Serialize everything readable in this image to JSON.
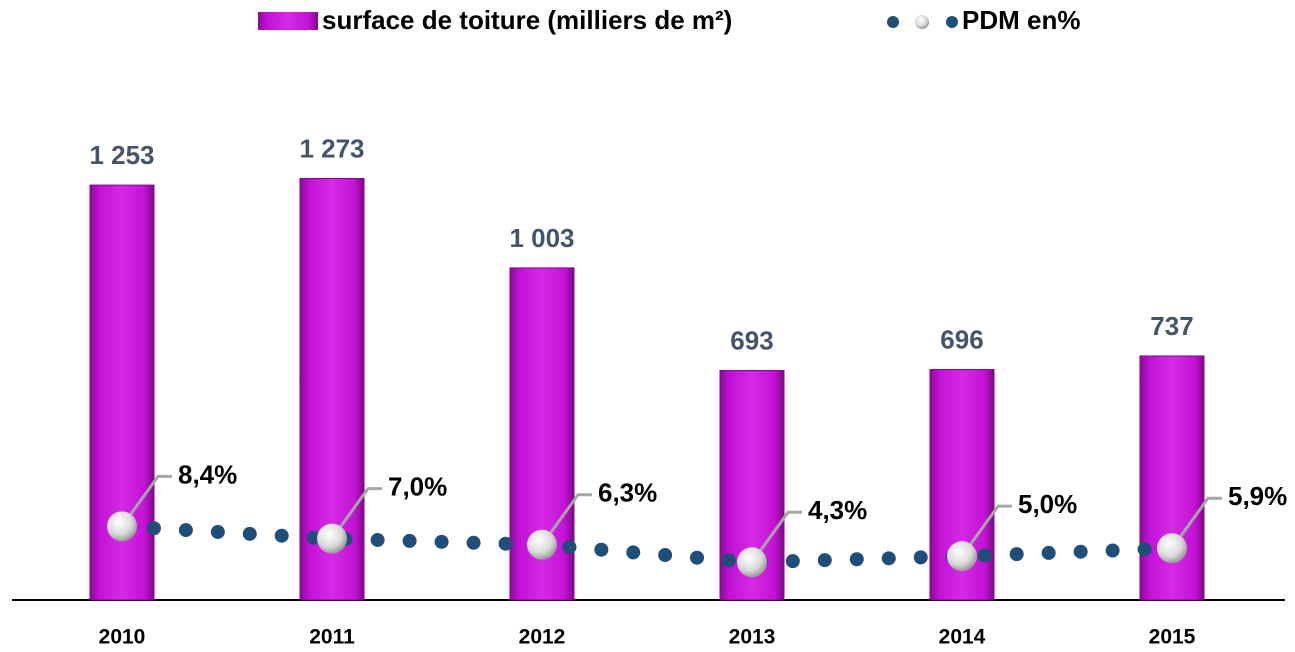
{
  "chart_data": {
    "type": "bar_line",
    "categories": [
      "2010",
      "2011",
      "2012",
      "2013",
      "2014",
      "2015"
    ],
    "series": [
      {
        "name": "surface de toiture (milliers de m²)",
        "type": "bar",
        "color": "#c412d6",
        "values": [
          1253,
          1273,
          1003,
          693,
          696,
          737
        ],
        "value_labels": [
          "1 253",
          "1 273",
          "1 003",
          "693",
          "696",
          "737"
        ]
      },
      {
        "name": "PDM en%",
        "type": "line",
        "axis": "y2",
        "color": "#1f4e79",
        "values": [
          8.4,
          7.0,
          6.3,
          4.3,
          5.0,
          5.9
        ],
        "value_labels": [
          "8,4%",
          "7,0%",
          "6,3%",
          "4,3%",
          "5,0%",
          "5,9%"
        ]
      }
    ],
    "ylim": [
      0,
      1800
    ],
    "y2lim": [
      0,
      68
    ],
    "legend": "top"
  }
}
